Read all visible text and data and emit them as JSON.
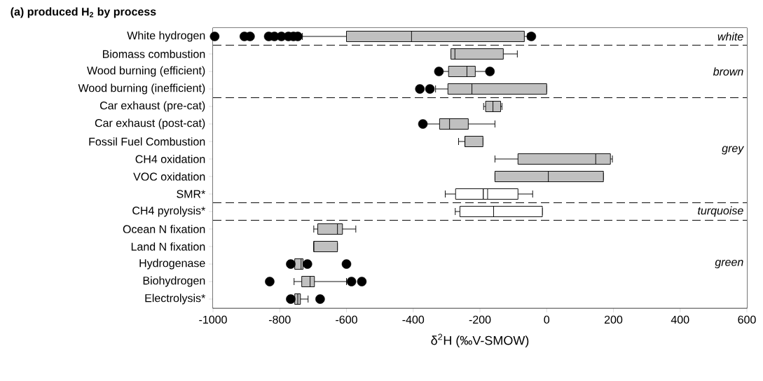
{
  "chart_data": {
    "type": "box",
    "orientation": "horizontal",
    "title": "(a) produced H$_{2}$ by process",
    "xlabel": "δ$^{2}$H (‰V-SMOW)",
    "categories": [
      "White hydrogen",
      "Biomass combustion",
      "Wood burning (efficient)",
      "Wood burning (inefficient)",
      "Car exhaust (pre-cat)",
      "Car exhaust (post-cat)",
      "Fossil Fuel Combustion",
      "CH4 oxidation",
      "VOC oxidation",
      "SMR*",
      "CH4 pyrolysis*",
      "Ocean N fixation",
      "Land N fixation",
      "Hydrogenase",
      "Biohydrogen",
      "Electrolysis*"
    ],
    "colors": [
      "#c0c0c0",
      "#c0c0c0",
      "#c0c0c0",
      "#c0c0c0",
      "#c0c0c0",
      "#c0c0c0",
      "#c0c0c0",
      "#c0c0c0",
      "#c0c0c0",
      "#ffffff",
      "#ffffff",
      "#c0c0c0",
      "#c0c0c0",
      "#c0c0c0",
      "#c0c0c0",
      "#c0c0c0"
    ],
    "boxes": [
      {
        "low": -732,
        "q1": -600,
        "median": -405,
        "q3": -67,
        "high": -57,
        "outliers": [
          -995,
          -906,
          -889,
          -833,
          -816,
          -795,
          -774,
          -759,
          -746,
          -46
        ]
      },
      {
        "low": -287,
        "q1": -287,
        "median": -275,
        "q3": -130,
        "high": -88
      },
      {
        "low": -317,
        "q1": -294,
        "median": -239,
        "q3": -214,
        "high": -176,
        "outliers": [
          -323,
          -170
        ]
      },
      {
        "low": -333,
        "q1": -296,
        "median": -224,
        "q3": 0,
        "high": 0,
        "outliers": [
          -380,
          -350
        ]
      },
      {
        "low": -189,
        "q1": -183,
        "median": -161,
        "q3": -138,
        "high": -134
      },
      {
        "low": -371,
        "q1": -321,
        "median": -291,
        "q3": -235,
        "high": -155,
        "outliers": [
          -371
        ]
      },
      {
        "low": -264,
        "q1": -245,
        "median": -245,
        "q3": -191,
        "high": -191
      },
      {
        "low": -155,
        "q1": -86,
        "median": 147,
        "q3": 191,
        "high": 197
      },
      {
        "low": -155,
        "q1": -155,
        "median": 5,
        "q3": 170,
        "high": 170
      },
      {
        "low": -304,
        "q1": -273,
        "median": -177,
        "q3": -86,
        "high": -42,
        "mean": -190
      },
      {
        "low": -274,
        "q1": -260,
        "median": -159,
        "q3": -13,
        "high": -13
      },
      {
        "low": -698,
        "q1": -686,
        "median": -627,
        "q3": -612,
        "high": -572
      },
      {
        "low": -698,
        "q1": -698,
        "median": -698,
        "q3": -627,
        "high": -627
      },
      {
        "low": -759,
        "q1": -755,
        "median": -736,
        "q3": -730,
        "high": -721,
        "outliers": [
          -767,
          -717,
          -600
        ]
      },
      {
        "low": -757,
        "q1": -734,
        "median": -709,
        "q3": -696,
        "high": -600,
        "outliers": [
          -830,
          -585,
          -554
        ]
      },
      {
        "low": -759,
        "q1": -755,
        "median": -746,
        "q3": -738,
        "high": -715,
        "outliers": [
          -767,
          -679
        ]
      }
    ],
    "xlim": [
      -1000,
      600
    ],
    "xticks": [
      -1000,
      -800,
      -600,
      -400,
      -200,
      0,
      200,
      400,
      600
    ],
    "bands": [
      {
        "axis": "y",
        "from": "White hydrogen",
        "to": "White hydrogen",
        "label": "white",
        "color": "#ffffff"
      },
      {
        "axis": "y",
        "from": "Biomass combustion",
        "to": "Wood burning (inefficient)",
        "label": "brown",
        "color": "#ffffff"
      },
      {
        "axis": "y",
        "from": "Car exhaust (pre-cat)",
        "to": "SMR*",
        "label": "grey",
        "color": "#ffffff"
      },
      {
        "axis": "y",
        "from": "CH4 pyrolysis*",
        "to": "CH4 pyrolysis*",
        "label": "turquoise",
        "color": "#ffffff"
      },
      {
        "axis": "y",
        "from": "Ocean N fixation",
        "to": "Electrolysis*",
        "label": "green",
        "color": "#ffffff"
      }
    ]
  }
}
